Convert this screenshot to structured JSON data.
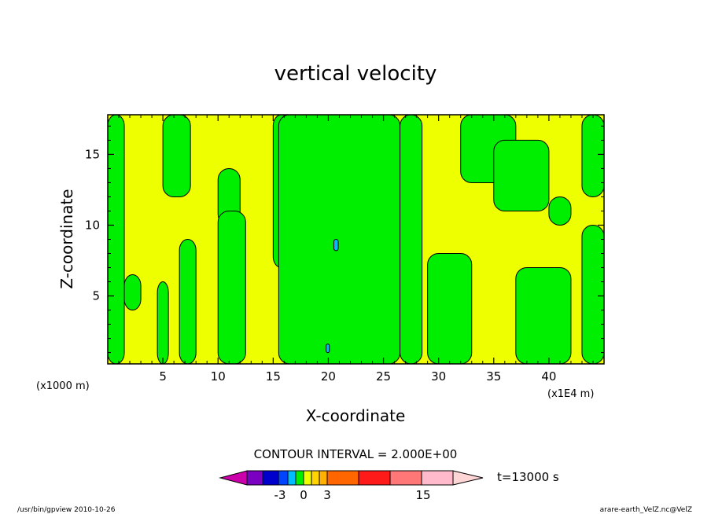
{
  "chart_data": {
    "type": "heatmap",
    "title": "vertical velocity",
    "xlabel": "X-coordinate",
    "ylabel": "Z-coordinate",
    "xunit_left": "(x1000 m)",
    "xunit_right": "(x1E4 m)",
    "xlim": [
      0,
      45
    ],
    "ylim": [
      0.2,
      17.8
    ],
    "xticks": [
      5,
      10,
      15,
      20,
      25,
      30,
      35,
      40
    ],
    "yticks": [
      5,
      10,
      15
    ],
    "contour_interval": "CONTOUR INTERVAL = 2.000E+00",
    "time_label": "t=13000 s",
    "colorbar_labels": [
      "-3",
      "0",
      "3",
      "15"
    ],
    "colorbar_colors": [
      "#cc00aa",
      "#7a00c2",
      "#0000cc",
      "#0044ff",
      "#00bbff",
      "#00ee00",
      "#eeff00",
      "#ffd400",
      "#ffb000",
      "#ff6600",
      "#ff1a1a",
      "#ff7777",
      "#ffbbcc",
      "#ffd6d6"
    ],
    "field_colors": {
      "positive": "#eeff00",
      "weak_negative": "#00ee00",
      "negative": "#00bbff",
      "strong_negative": "#0044ff"
    },
    "green_regions": [
      {
        "x": [
          0,
          1.5
        ],
        "z": [
          0.2,
          17.8
        ]
      },
      {
        "x": [
          1.5,
          3
        ],
        "z": [
          4,
          6.5
        ]
      },
      {
        "x": [
          4.5,
          5.5
        ],
        "z": [
          0.2,
          6
        ]
      },
      {
        "x": [
          5,
          7.5
        ],
        "z": [
          12,
          17.8
        ]
      },
      {
        "x": [
          6.5,
          8
        ],
        "z": [
          0.2,
          9
        ]
      },
      {
        "x": [
          10,
          12
        ],
        "z": [
          10,
          14
        ]
      },
      {
        "x": [
          10,
          12.5
        ],
        "z": [
          0.2,
          11
        ]
      },
      {
        "x": [
          15,
          16.5
        ],
        "z": [
          7,
          17.8
        ]
      },
      {
        "x": [
          15.5,
          26.5
        ],
        "z": [
          0.2,
          17.8
        ]
      },
      {
        "x": [
          26.5,
          28.5
        ],
        "z": [
          0.2,
          17.8
        ]
      },
      {
        "x": [
          29,
          33
        ],
        "z": [
          0.2,
          8
        ]
      },
      {
        "x": [
          32,
          37
        ],
        "z": [
          13,
          17.8
        ]
      },
      {
        "x": [
          35,
          40
        ],
        "z": [
          11,
          16
        ]
      },
      {
        "x": [
          37,
          42
        ],
        "z": [
          0.2,
          7
        ]
      },
      {
        "x": [
          40,
          42
        ],
        "z": [
          10,
          12
        ]
      },
      {
        "x": [
          43,
          45
        ],
        "z": [
          0.2,
          10
        ]
      },
      {
        "x": [
          43,
          45
        ],
        "z": [
          12,
          17.8
        ]
      }
    ],
    "cyan_regions": [
      {
        "x": [
          20.5,
          20.9
        ],
        "z": [
          8.2,
          9
        ]
      },
      {
        "x": [
          19.8,
          20.1
        ],
        "z": [
          1,
          1.6
        ]
      }
    ]
  },
  "footer": {
    "left": "/usr/bin/gpview   2010-10-26",
    "right": "arare-earth_VelZ.nc@VelZ"
  }
}
